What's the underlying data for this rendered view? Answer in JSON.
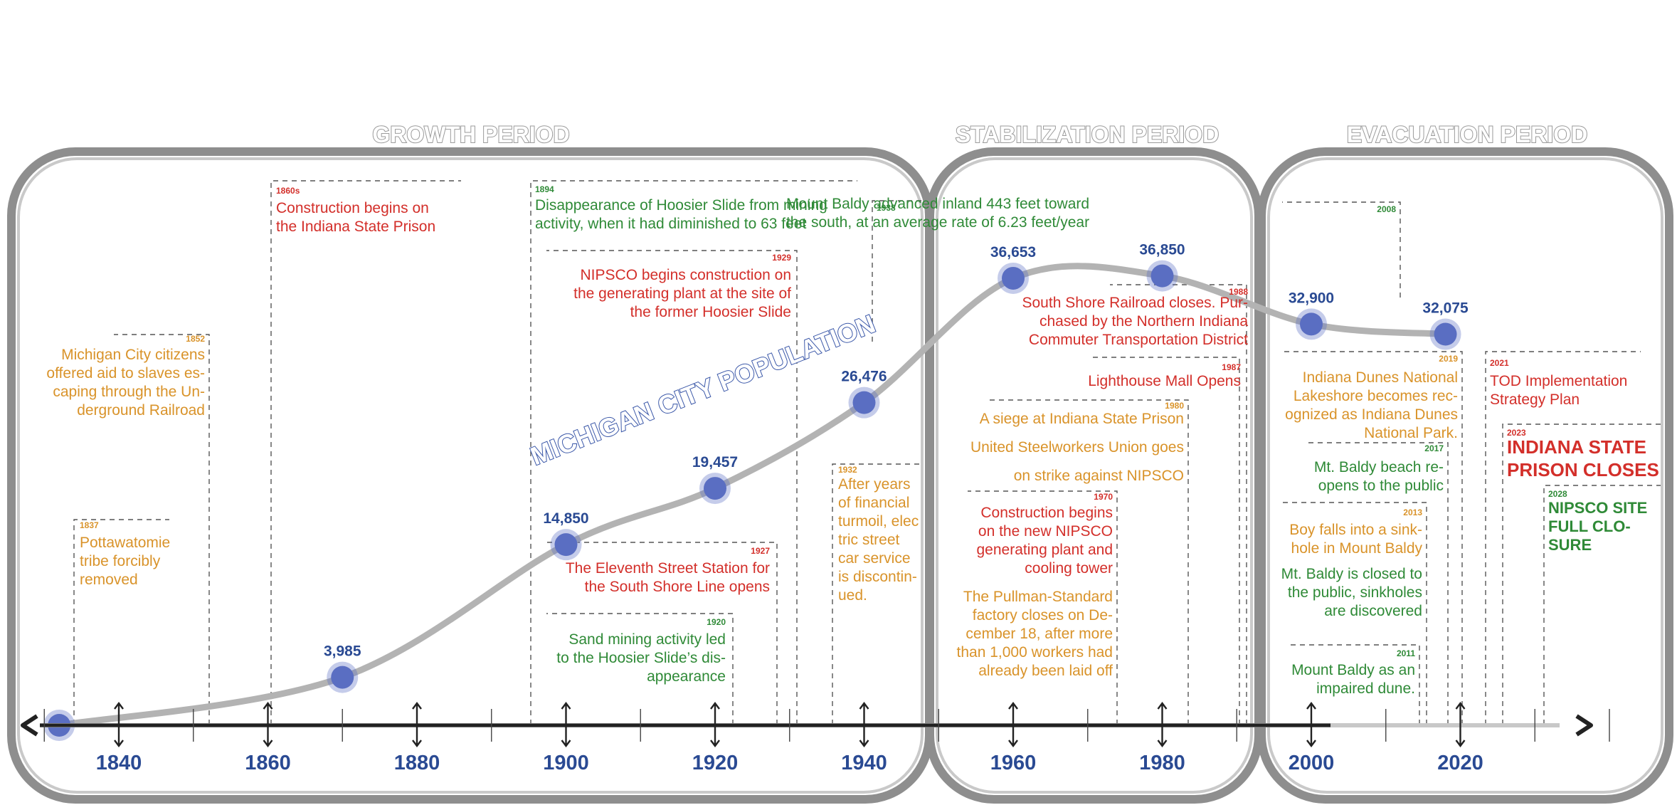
{
  "periods": [
    {
      "label": "GROWTH PERIOD"
    },
    {
      "label": "STABILIZATION PERIOD"
    },
    {
      "label": "EVACUATION PERIOD"
    }
  ],
  "population_label": "MICHIGAN CITY POPULATION",
  "axis": {
    "years": [
      "1840",
      "1860",
      "1880",
      "1900",
      "1920",
      "1940",
      "1960",
      "1980",
      "2000",
      "2020"
    ]
  },
  "colors": {
    "red": "#d32f2a",
    "orange": "#d9932a",
    "green": "#2f8a37",
    "blue": "#2a4a93",
    "dot": "#5a6ec2",
    "line": "#b3b3b3"
  },
  "chart_data": {
    "type": "line",
    "title": "MICHIGAN CITY POPULATION",
    "x_unit": "year",
    "points": [
      {
        "year": 1832,
        "value": null,
        "label": ""
      },
      {
        "year": 1870,
        "value": 3985,
        "label": "3,985"
      },
      {
        "year": 1900,
        "value": 14850,
        "label": "14,850"
      },
      {
        "year": 1920,
        "value": 19457,
        "label": "19,457"
      },
      {
        "year": 1940,
        "value": 26476,
        "label": "26,476"
      },
      {
        "year": 1960,
        "value": 36653,
        "label": "36,653"
      },
      {
        "year": 1980,
        "value": 36850,
        "label": "36,850"
      },
      {
        "year": 2000,
        "value": 32900,
        "label": "32,900"
      },
      {
        "year": 2018,
        "value": 32075,
        "label": "32,075"
      }
    ]
  },
  "events": [
    {
      "year": "1837",
      "lines": [
        "Pottawatomie",
        "tribe forcibly",
        "removed"
      ],
      "color": "orange"
    },
    {
      "year": "1852",
      "lines": [
        "Michigan City citizens",
        "offered aid to slaves es-",
        "caping through the Un-",
        "derground Railroad"
      ],
      "color": "orange"
    },
    {
      "year": "1860s",
      "lines": [
        "Construction begins on",
        "the Indiana State Prison"
      ],
      "color": "red"
    },
    {
      "year": "1894",
      "lines": [
        "Disappearance of Hoosier Slide from mining",
        "activity, when it had diminished to 63 feet"
      ],
      "color": "green"
    },
    {
      "year": "1929",
      "lines": [
        "NIPSCO begins construction on",
        "the generating plant at the site of",
        "the former Hoosier Slide"
      ],
      "color": "red"
    },
    {
      "year": "1938",
      "lines": [
        "Mount Baldy advanced inland 443 feet toward",
        "the south, at an average rate of 6.23 feet/year"
      ],
      "color": "green"
    },
    {
      "year": "1927",
      "lines": [
        "The Eleventh Street Station for",
        "the South Shore Line opens"
      ],
      "color": "red"
    },
    {
      "year": "1920",
      "lines": [
        "Sand mining activity led",
        "to the Hoosier Slide’s dis-",
        "appearance"
      ],
      "color": "green"
    },
    {
      "year": "1932",
      "lines": [
        "After years",
        "of financial",
        "turmoil, elec",
        "tric street",
        "car service",
        "is discontin-",
        "ued."
      ],
      "color": "orange"
    },
    {
      "year": "1988",
      "lines": [
        "South Shore Railroad closes. Pur-",
        "chased by the Northern Indiana",
        "Commuter Transportation District"
      ],
      "color": "red"
    },
    {
      "year": "1987",
      "lines": [
        "Lighthouse Mall Opens"
      ],
      "color": "red"
    },
    {
      "year": "1980",
      "lines": [
        "A siege at Indiana State Prison",
        "United Steelworkers Union goes",
        "on strike against NIPSCO"
      ],
      "color": "orange"
    },
    {
      "year": "1970",
      "lines": [
        "Construction begins",
        "on the new NIPSCO",
        "generating plant and",
        "cooling tower"
      ],
      "color": "red"
    },
    {
      "year": "",
      "lines": [
        "The Pullman-Standard",
        "factory closes on De-",
        "cember 18, after more",
        "than 1,000 workers had",
        "already been laid off"
      ],
      "color": "orange"
    },
    {
      "year": "2008",
      "lines": [],
      "color": "green"
    },
    {
      "year": "2019",
      "lines": [
        "Indiana Dunes National",
        "Lakeshore becomes rec-",
        "ognized as Indiana Dunes",
        "National Park."
      ],
      "color": "orange"
    },
    {
      "year": "2017",
      "lines": [
        "Mt. Baldy beach re-",
        "opens to the public"
      ],
      "color": "green"
    },
    {
      "year": "2013",
      "lines": [
        "Boy falls into a sink-",
        "hole in Mount Baldy"
      ],
      "color": "orange"
    },
    {
      "year": "",
      "lines": [
        "Mt. Baldy is closed to",
        "the public, sinkholes",
        "are discovered"
      ],
      "color": "green"
    },
    {
      "year": "2011",
      "lines": [
        "Mount Baldy as an",
        "impaired dune."
      ],
      "color": "green"
    },
    {
      "year": "2021",
      "lines": [
        "TOD Implementation",
        "Strategy Plan"
      ],
      "color": "red"
    },
    {
      "year": "2023",
      "lines": [
        "INDIANA STATE",
        "PRISON CLOSES"
      ],
      "color": "red"
    },
    {
      "year": "2028",
      "lines": [
        "NIPSCO SITE",
        "FULL CLO-",
        "SURE"
      ],
      "color": "green"
    }
  ]
}
